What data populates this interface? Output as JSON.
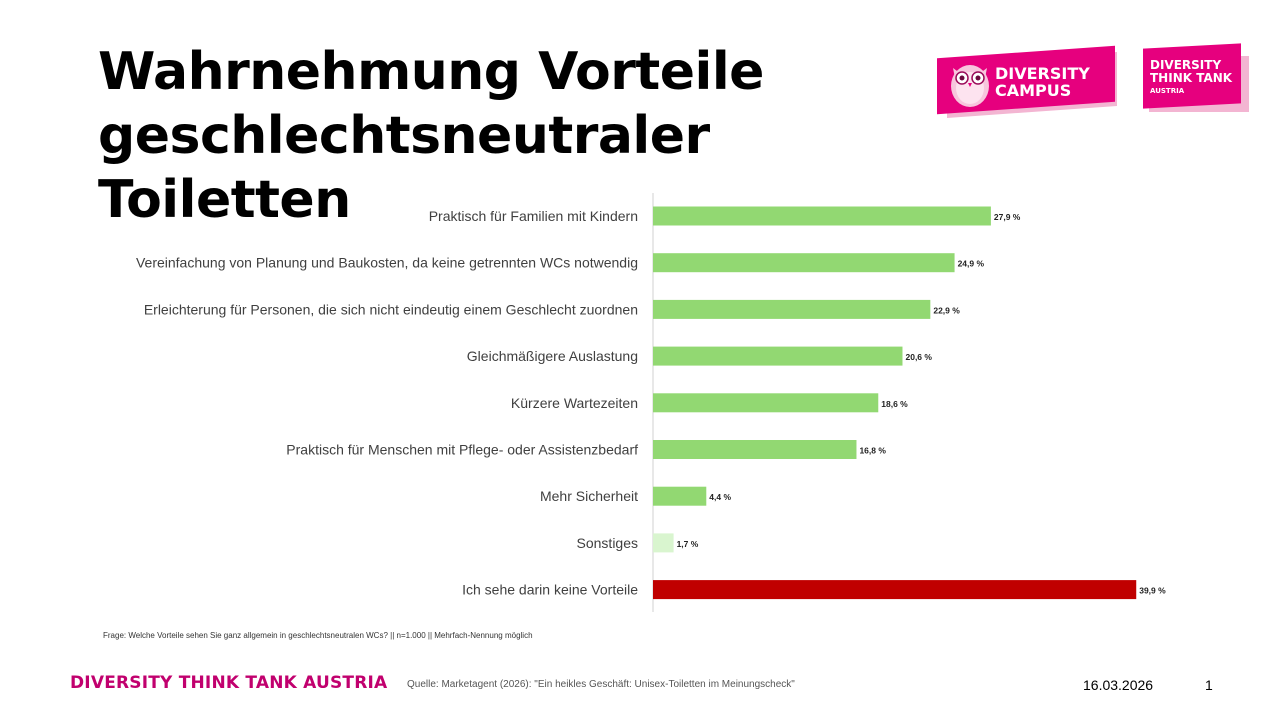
{
  "slide": {
    "title_line1": "Wahrnehmung Vorteile",
    "title_line2": "geschlechtsneutraler Toiletten",
    "question": "Frage: Welche Vorteile sehen Sie ganz allgemein in geschlechtsneutralen WCs? || n=1.000 || Mehrfach-Nennung möglich",
    "footer_brand": "DIVERSITY THINK TANK AUSTRIA",
    "source": "Quelle: Marketagent (2026): \"Ein heikles Geschäft: Unisex-Toiletten im Meinungscheck\"",
    "date": "16.03.2026",
    "page_number": "1"
  },
  "logos": {
    "campus_line1": "DIVERSITY",
    "campus_line2": "CAMPUS",
    "dtt_line1": "DIVERSITY",
    "dtt_line2": "THINK TANK",
    "dtt_line3": "AUSTRIA"
  },
  "colors": {
    "bar_green": "#92d872",
    "bar_light_green": "#d9f5cf",
    "bar_red": "#c00000",
    "brand_pink": "#e6007e"
  },
  "chart_data": {
    "type": "bar",
    "orientation": "horizontal",
    "title": "",
    "xlabel": "",
    "ylabel": "",
    "xlim": [
      0,
      45
    ],
    "grid": false,
    "categories": [
      "Praktisch für Familien mit Kindern",
      "Vereinfachung von Planung und Baukosten, da keine getrennten WCs notwendig",
      "Erleichterung für Personen, die sich nicht eindeutig einem Geschlecht zuordnen",
      "Gleichmäßigere Auslastung",
      "Kürzere Wartezeiten",
      "Praktisch für Menschen mit Pflege- oder Assistenzbedarf",
      "Mehr Sicherheit",
      "Sonstiges",
      "Ich sehe darin keine Vorteile"
    ],
    "values": [
      27.9,
      24.9,
      22.9,
      20.6,
      18.6,
      16.8,
      4.4,
      1.7,
      39.9
    ],
    "labels": [
      "27,9 %",
      "24,9 %",
      "22,9 %",
      "20,6 %",
      "18,6 %",
      "16,8 %",
      "4,4 %",
      "1,7 %",
      "39,9 %"
    ],
    "bar_colors": [
      "green",
      "green",
      "green",
      "green",
      "green",
      "green",
      "green",
      "light_green",
      "red"
    ]
  }
}
